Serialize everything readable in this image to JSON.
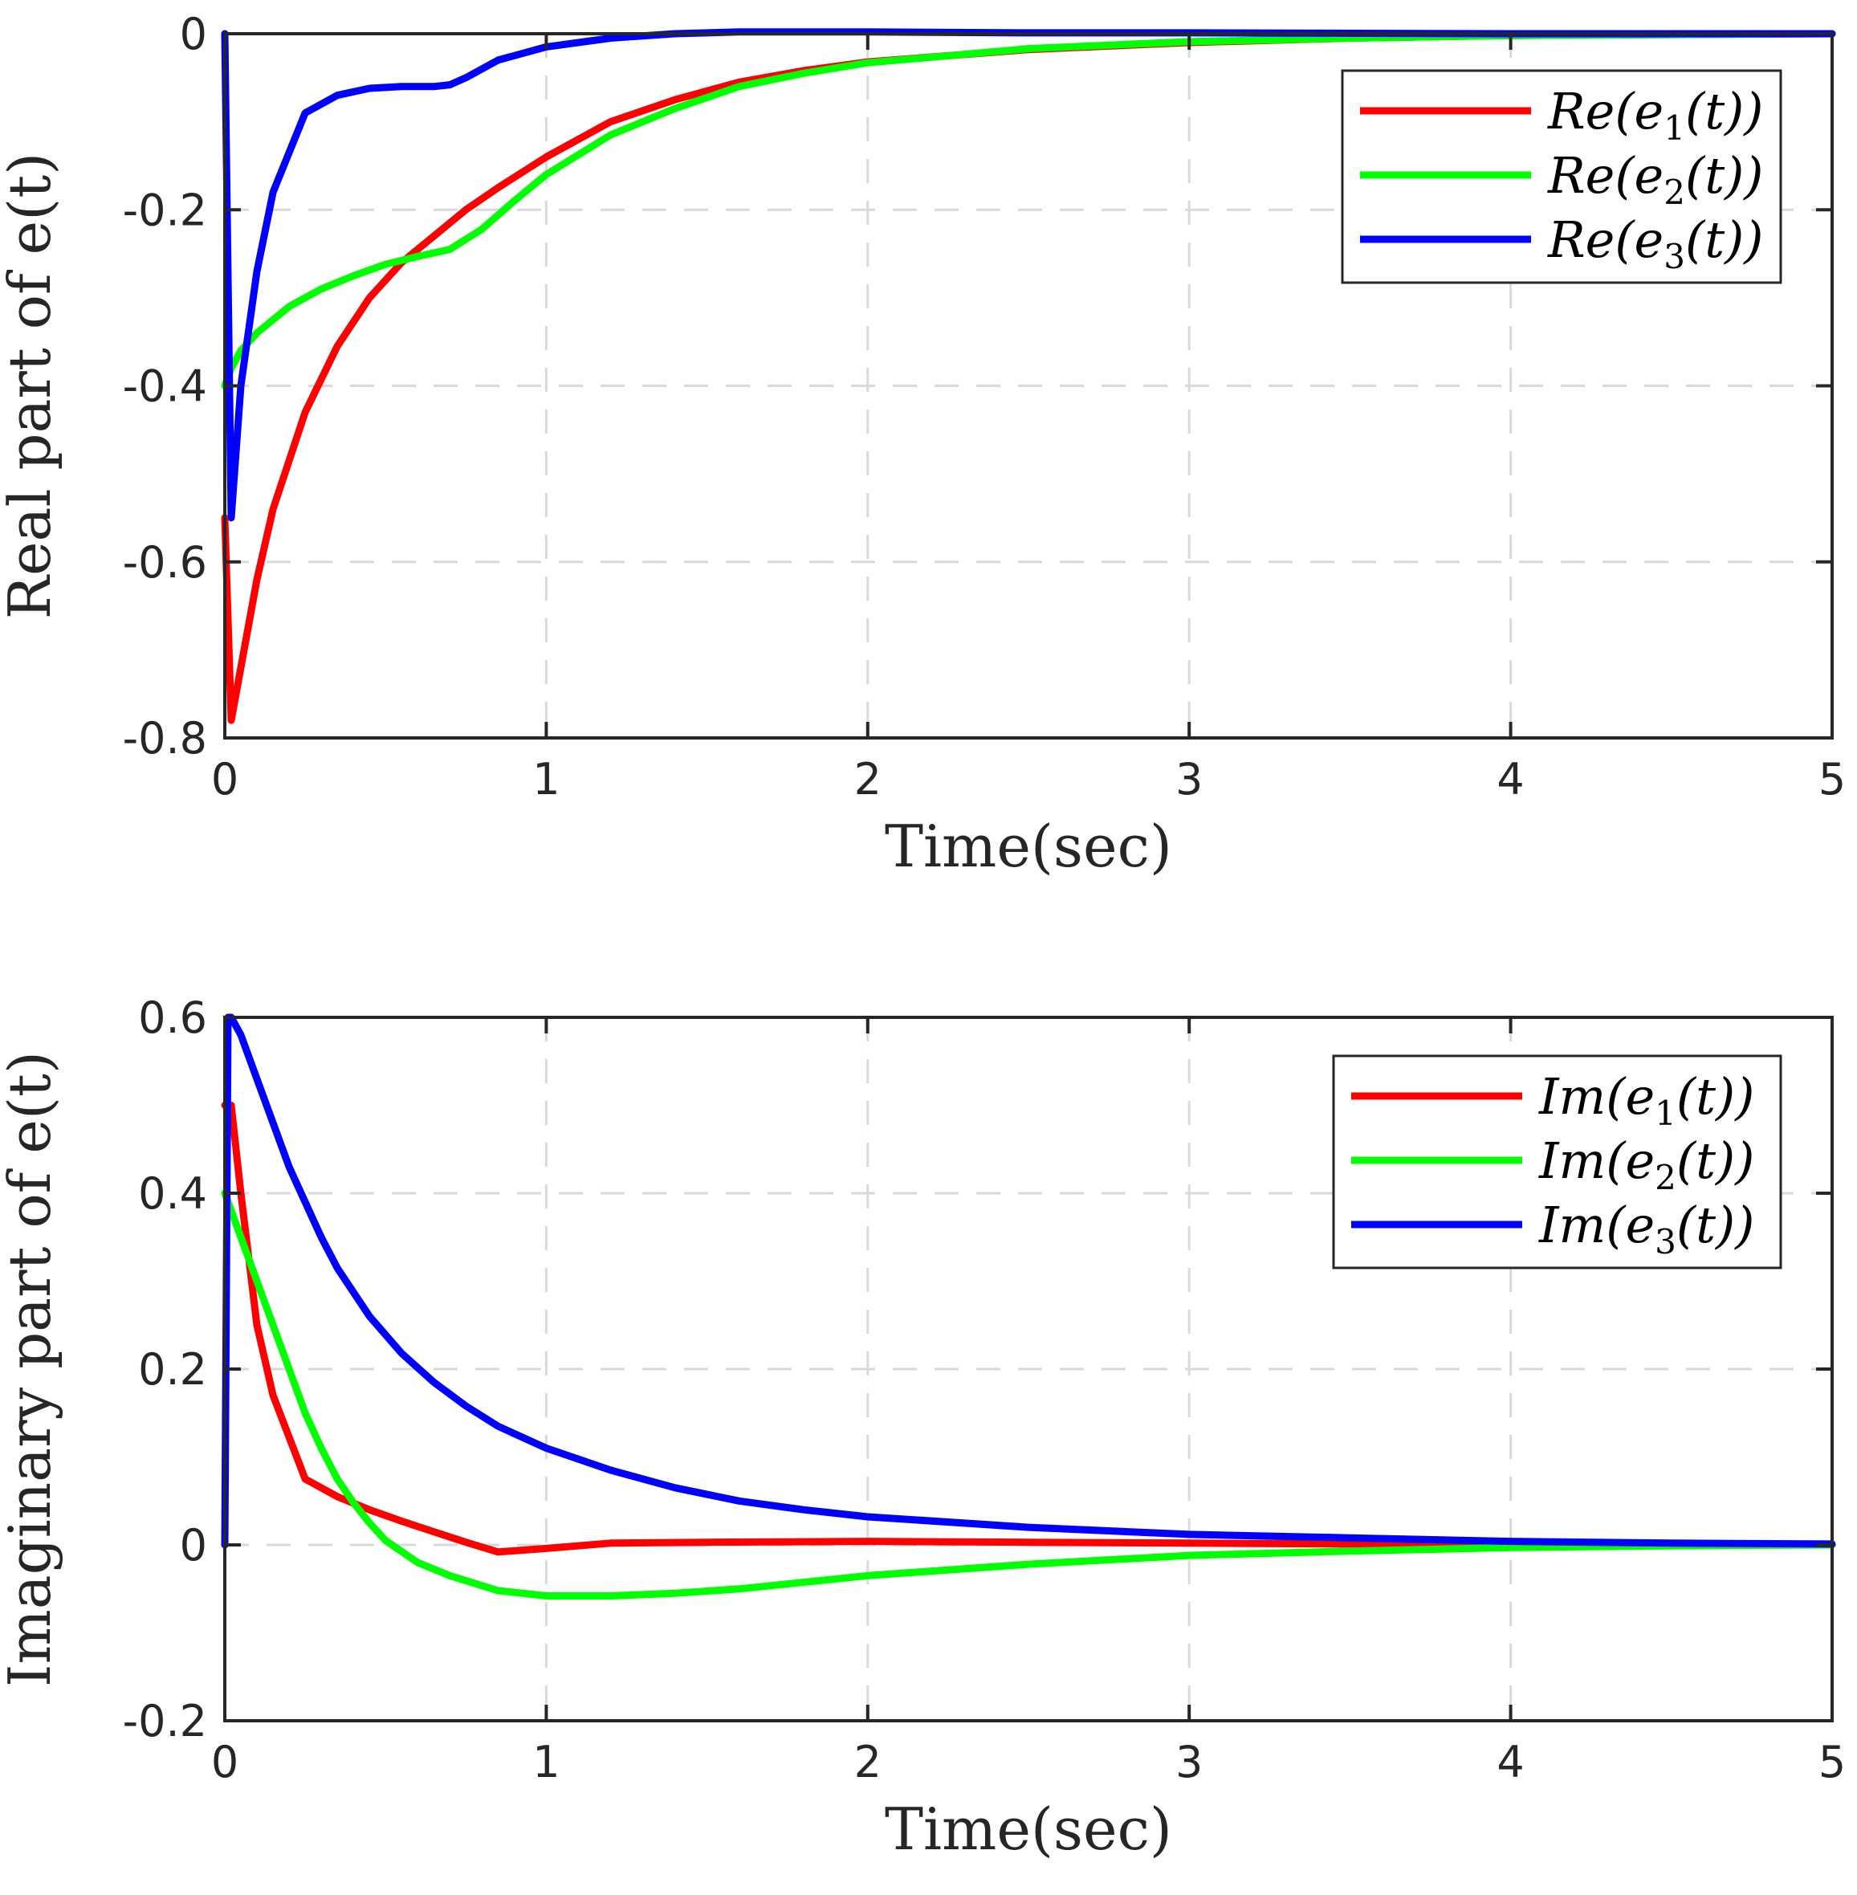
{
  "chart_data": [
    {
      "type": "line",
      "title": "",
      "xlabel": "Time(sec)",
      "ylabel": "Real part of e(t)",
      "xlim": [
        0,
        5
      ],
      "ylim": [
        -0.8,
        0
      ],
      "xticks": [
        0,
        1,
        2,
        3,
        4,
        5
      ],
      "xtick_labels": [
        "0",
        "1",
        "2",
        "3",
        "4",
        "5"
      ],
      "yticks": [
        -0.8,
        -0.6,
        -0.4,
        -0.2,
        0
      ],
      "ytick_labels": [
        "-0.8",
        "-0.6",
        "-0.4",
        "-0.2",
        "0"
      ],
      "grid": true,
      "legend_position": "top-right",
      "series": [
        {
          "name": "Re(e1(t))",
          "legend": {
            "prefix": "Re(e",
            "sub": "1",
            "suffix": "(t))"
          },
          "color": "#ff0000",
          "x": [
            0,
            0.02,
            0.05,
            0.1,
            0.15,
            0.25,
            0.35,
            0.45,
            0.55,
            0.65,
            0.75,
            0.85,
            1.0,
            1.2,
            1.4,
            1.6,
            1.8,
            2.0,
            2.5,
            3.0,
            3.5,
            4.0,
            4.5,
            5.0
          ],
          "y": [
            -0.55,
            -0.78,
            -0.72,
            -0.62,
            -0.54,
            -0.43,
            -0.355,
            -0.3,
            -0.26,
            -0.23,
            -0.2,
            -0.175,
            -0.14,
            -0.1,
            -0.075,
            -0.055,
            -0.042,
            -0.032,
            -0.018,
            -0.01,
            -0.005,
            -0.002,
            -0.001,
            0
          ]
        },
        {
          "name": "Re(e2(t))",
          "legend": {
            "prefix": "Re(e",
            "sub": "2",
            "suffix": "(t))"
          },
          "color": "#00ff00",
          "x": [
            0,
            0.02,
            0.05,
            0.1,
            0.2,
            0.3,
            0.4,
            0.5,
            0.6,
            0.7,
            0.8,
            0.9,
            1.0,
            1.2,
            1.4,
            1.6,
            1.8,
            2.0,
            2.5,
            3.0,
            3.5,
            4.0,
            4.5,
            5.0
          ],
          "y": [
            -0.4,
            -0.38,
            -0.36,
            -0.34,
            -0.31,
            -0.29,
            -0.275,
            -0.262,
            -0.253,
            -0.245,
            -0.222,
            -0.19,
            -0.16,
            -0.115,
            -0.085,
            -0.06,
            -0.045,
            -0.033,
            -0.017,
            -0.009,
            -0.005,
            -0.002,
            -0.001,
            0
          ]
        },
        {
          "name": "Re(e3(t))",
          "legend": {
            "prefix": "Re(e",
            "sub": "3",
            "suffix": "(t))"
          },
          "color": "#0000ff",
          "x": [
            0,
            0.02,
            0.05,
            0.1,
            0.15,
            0.25,
            0.35,
            0.45,
            0.55,
            0.65,
            0.7,
            0.75,
            0.85,
            1.0,
            1.2,
            1.4,
            1.6,
            2.0,
            2.5,
            3.0,
            4.0,
            5.0
          ],
          "y": [
            0,
            -0.55,
            -0.4,
            -0.27,
            -0.18,
            -0.09,
            -0.07,
            -0.062,
            -0.06,
            -0.06,
            -0.058,
            -0.05,
            -0.03,
            -0.015,
            -0.005,
            0,
            0.002,
            0.002,
            0.001,
            0.001,
            0,
            0
          ]
        }
      ]
    },
    {
      "type": "line",
      "title": "",
      "xlabel": "Time(sec)",
      "ylabel": "Imaginary part of e(t)",
      "xlim": [
        0,
        5
      ],
      "ylim": [
        -0.2,
        0.6
      ],
      "xticks": [
        0,
        1,
        2,
        3,
        4,
        5
      ],
      "xtick_labels": [
        "0",
        "1",
        "2",
        "3",
        "4",
        "5"
      ],
      "yticks": [
        -0.2,
        0,
        0.2,
        0.4,
        0.6
      ],
      "ytick_labels": [
        "-0.2",
        "0",
        "0.2",
        "0.4",
        "0.6"
      ],
      "grid": true,
      "legend_position": "top-right",
      "series": [
        {
          "name": "Im(e1(t))",
          "legend": {
            "prefix": "Im(e",
            "sub": "1",
            "suffix": "(t))"
          },
          "color": "#ff0000",
          "x": [
            0,
            0.02,
            0.05,
            0.1,
            0.15,
            0.25,
            0.35,
            0.45,
            0.55,
            0.65,
            0.75,
            0.85,
            1.0,
            1.2,
            1.5,
            2.0,
            2.5,
            3.0,
            3.5,
            4.0,
            4.5,
            5.0
          ],
          "y": [
            0.5,
            0.5,
            0.4,
            0.25,
            0.17,
            0.075,
            0.055,
            0.04,
            0.027,
            0.015,
            0.003,
            -0.008,
            -0.004,
            0.002,
            0.003,
            0.004,
            0.003,
            0.002,
            0.001,
            0,
            0,
            0
          ]
        },
        {
          "name": "Im(e2(t))",
          "legend": {
            "prefix": "Im(e",
            "sub": "2",
            "suffix": "(t))"
          },
          "color": "#00ff00",
          "x": [
            0,
            0.02,
            0.05,
            0.1,
            0.15,
            0.2,
            0.25,
            0.3,
            0.35,
            0.4,
            0.45,
            0.5,
            0.6,
            0.7,
            0.85,
            1.0,
            1.2,
            1.4,
            1.6,
            2.0,
            2.5,
            3.0,
            3.5,
            4.0,
            4.5,
            5.0
          ],
          "y": [
            0.4,
            0.38,
            0.35,
            0.3,
            0.25,
            0.2,
            0.15,
            0.11,
            0.075,
            0.048,
            0.025,
            0.005,
            -0.02,
            -0.035,
            -0.052,
            -0.058,
            -0.058,
            -0.055,
            -0.05,
            -0.035,
            -0.022,
            -0.012,
            -0.007,
            -0.003,
            -0.001,
            0
          ]
        },
        {
          "name": "Im(e3(t))",
          "legend": {
            "prefix": "Im(e",
            "sub": "3",
            "suffix": "(t))"
          },
          "color": "#0000ff",
          "x": [
            0,
            0.01,
            0.02,
            0.05,
            0.1,
            0.2,
            0.3,
            0.35,
            0.45,
            0.55,
            0.65,
            0.75,
            0.85,
            1.0,
            1.2,
            1.4,
            1.6,
            1.8,
            2.0,
            2.5,
            3.0,
            3.5,
            4.0,
            4.5,
            5.0
          ],
          "y": [
            0,
            0.6,
            0.6,
            0.58,
            0.53,
            0.43,
            0.35,
            0.315,
            0.26,
            0.218,
            0.185,
            0.158,
            0.135,
            0.11,
            0.085,
            0.065,
            0.05,
            0.04,
            0.032,
            0.02,
            0.012,
            0.008,
            0.004,
            0.002,
            0.001
          ]
        }
      ]
    }
  ]
}
